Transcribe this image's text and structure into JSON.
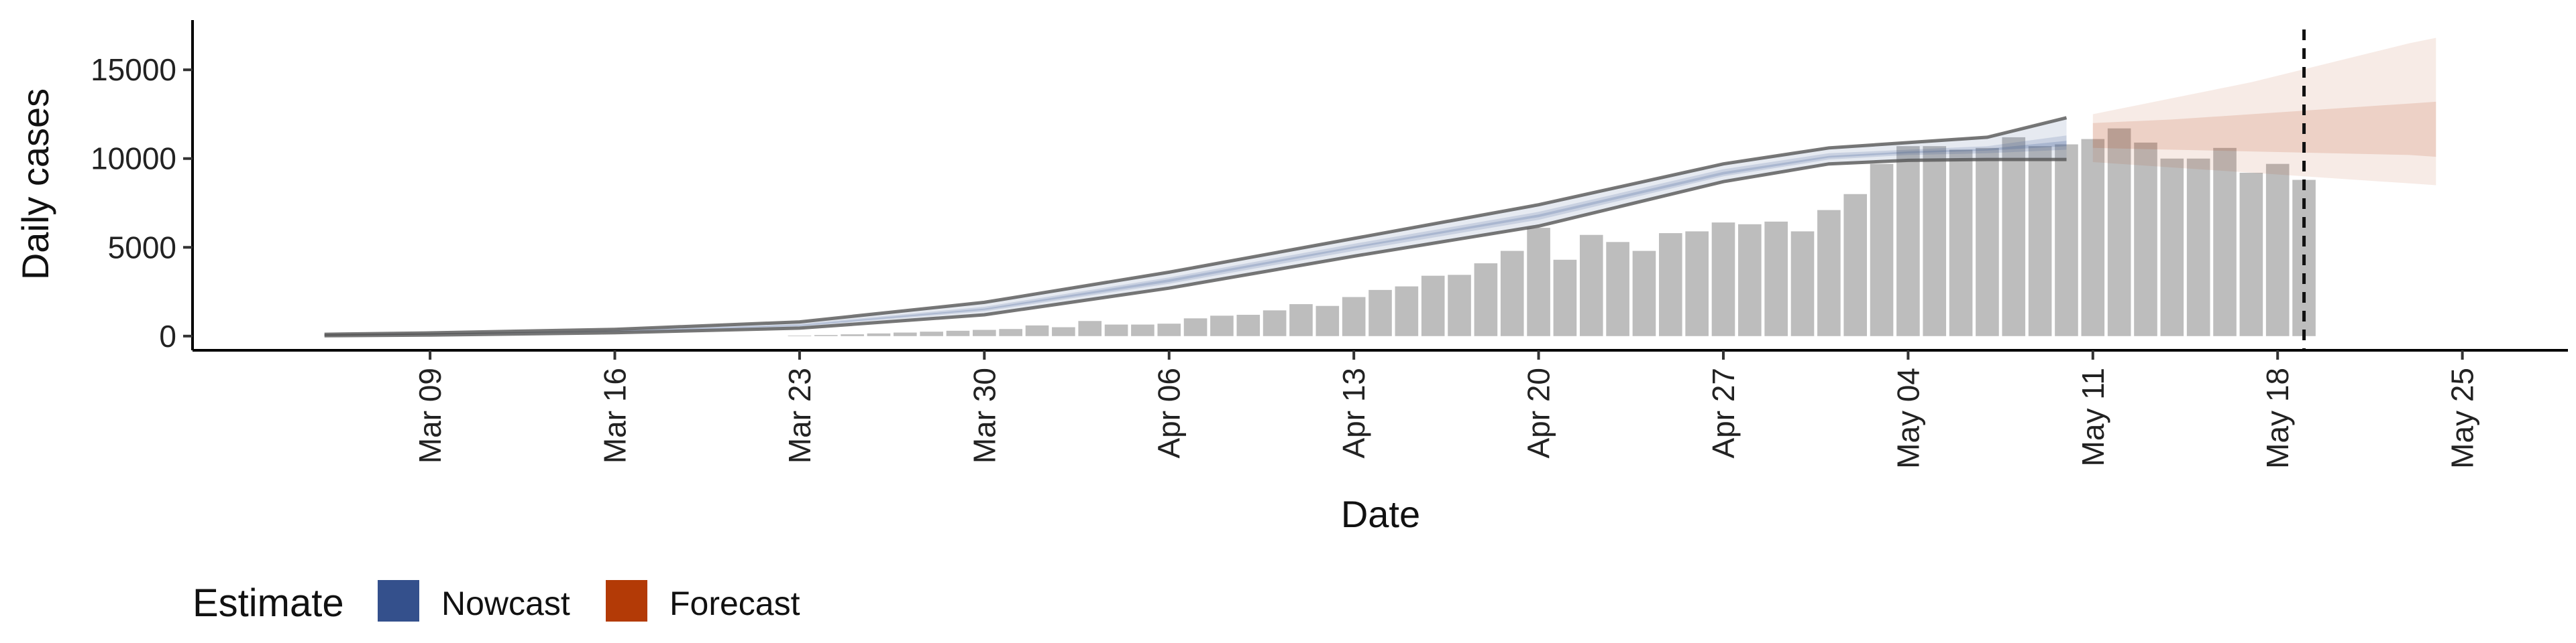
{
  "chart_data": {
    "type": "bar",
    "title": "",
    "xlabel": "Date",
    "ylabel": "Daily cases",
    "ylim": [
      -800,
      17800
    ],
    "yticks": [
      0,
      5000,
      10000,
      15000
    ],
    "xlim": [
      "2020-02-29",
      "2020-05-29"
    ],
    "xticks": [
      {
        "date": "2020-03-09",
        "label": "Mar 09"
      },
      {
        "date": "2020-03-16",
        "label": "Mar 16"
      },
      {
        "date": "2020-03-23",
        "label": "Mar 23"
      },
      {
        "date": "2020-03-30",
        "label": "Mar 30"
      },
      {
        "date": "2020-04-06",
        "label": "Apr 06"
      },
      {
        "date": "2020-04-13",
        "label": "Apr 13"
      },
      {
        "date": "2020-04-20",
        "label": "Apr 20"
      },
      {
        "date": "2020-04-27",
        "label": "Apr 27"
      },
      {
        "date": "2020-05-04",
        "label": "May 04"
      },
      {
        "date": "2020-05-11",
        "label": "May 11"
      },
      {
        "date": "2020-05-18",
        "label": "May 18"
      },
      {
        "date": "2020-05-25",
        "label": "May 25"
      }
    ],
    "grid": false,
    "bar_color": "#bdbdbd",
    "reported_cases": {
      "start_date": "2020-03-23",
      "values": [
        30,
        60,
        100,
        150,
        200,
        250,
        300,
        350,
        400,
        600,
        500,
        850,
        650,
        650,
        700,
        1000,
        1150,
        1200,
        1450,
        1800,
        1700,
        2200,
        2600,
        2800,
        3400,
        3450,
        4100,
        4800,
        6100,
        4300,
        5700,
        5300,
        4800,
        5800,
        5900,
        6400,
        6300,
        6450,
        5900,
        7100,
        8000,
        9700,
        10700,
        10700,
        10500,
        10600,
        11200,
        10700,
        10800,
        11100,
        11700,
        10900,
        10000,
        10000,
        10600,
        9200,
        9700,
        8800
      ]
    },
    "nowcast_color": "#34508c",
    "nowcast": {
      "dates": [
        "2020-03-05",
        "2020-03-09",
        "2020-03-16",
        "2020-03-23",
        "2020-03-30",
        "2020-04-06",
        "2020-04-13",
        "2020-04-20",
        "2020-04-27",
        "2020-05-01",
        "2020-05-04",
        "2020-05-07",
        "2020-05-10"
      ],
      "upper90": [
        100,
        180,
        380,
        800,
        1900,
        3600,
        5500,
        7400,
        9700,
        10600,
        10900,
        11200,
        12300
      ],
      "lower90": [
        20,
        60,
        190,
        450,
        1200,
        2700,
        4500,
        6200,
        8700,
        9700,
        9900,
        9950,
        9950
      ],
      "upper50": [
        80,
        140,
        320,
        680,
        1650,
        3300,
        5200,
        7000,
        9400,
        10300,
        10500,
        10700,
        11300
      ],
      "lower50": [
        40,
        90,
        230,
        540,
        1400,
        2950,
        4800,
        6550,
        9000,
        9950,
        10200,
        10300,
        10500
      ],
      "upper20": [
        65,
        125,
        290,
        620,
        1550,
        3200,
        5050,
        6850,
        9250,
        10150,
        10400,
        10550,
        11000
      ],
      "lower20": [
        50,
        105,
        260,
        580,
        1480,
        3050,
        4950,
        6700,
        9100,
        10050,
        10300,
        10450,
        10700
      ]
    },
    "forecast_color": "#b33a06",
    "forecast": {
      "dates": [
        "2020-05-11",
        "2020-05-14",
        "2020-05-17",
        "2020-05-20",
        "2020-05-23",
        "2020-05-24"
      ],
      "upper90": [
        12500,
        13400,
        14300,
        15400,
        16500,
        16800
      ],
      "lower90": [
        9800,
        9500,
        9200,
        8900,
        8600,
        8500
      ],
      "upper50": [
        12000,
        12200,
        12500,
        12800,
        13100,
        13200
      ],
      "lower50": [
        10600,
        10500,
        10400,
        10300,
        10200,
        10100
      ]
    },
    "estimate_date": "2020-05-19",
    "legend": {
      "title": "Estimate",
      "position": "bottom-left",
      "items": [
        {
          "label": "Nowcast",
          "color": "#34508c"
        },
        {
          "label": "Forecast",
          "color": "#b33a06"
        }
      ]
    }
  }
}
